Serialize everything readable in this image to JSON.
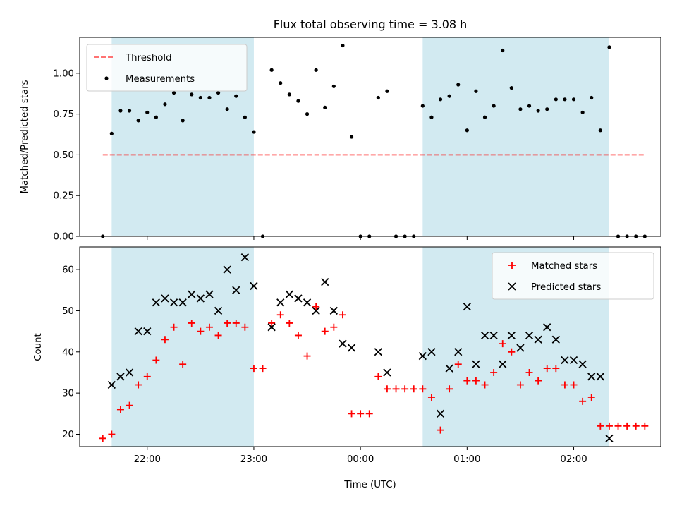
{
  "title": "Flux total observing time = 3.08 h",
  "colors": {
    "shade": "#add8e6",
    "threshold": "#ff0000",
    "measurement": "#000000",
    "matched": "#ff0000",
    "predicted": "#000000"
  },
  "chart_data": [
    {
      "type": "scatter",
      "ylabel": "Matched/Predicted stars",
      "xlabel": "",
      "ylim": [
        0,
        1.22
      ],
      "yticks": [
        0.0,
        0.25,
        0.5,
        0.75,
        1.0
      ],
      "ytick_labels": [
        "0.00",
        "0.25",
        "0.50",
        "0.75",
        "1.00"
      ],
      "shaded_intervals": [
        [
          "21:40",
          "23:00"
        ],
        [
          "00:35",
          "02:20"
        ]
      ],
      "legend": {
        "placement": "top-left",
        "entries": [
          "Threshold",
          "Measurements"
        ]
      },
      "threshold": {
        "name": "Threshold",
        "value": 0.5,
        "x_range": [
          "21:35",
          "02:40"
        ],
        "style": "dashed"
      },
      "series": [
        {
          "name": "Measurements",
          "marker": "dot",
          "points": [
            [
              "21:35",
              0.0
            ],
            [
              "21:40",
              0.63
            ],
            [
              "21:45",
              0.77
            ],
            [
              "21:50",
              0.77
            ],
            [
              "21:55",
              0.71
            ],
            [
              "22:00",
              0.76
            ],
            [
              "22:05",
              0.73
            ],
            [
              "22:10",
              0.81
            ],
            [
              "22:15",
              0.88
            ],
            [
              "22:20",
              0.71
            ],
            [
              "22:25",
              0.87
            ],
            [
              "22:30",
              0.85
            ],
            [
              "22:35",
              0.85
            ],
            [
              "22:40",
              0.88
            ],
            [
              "22:45",
              0.78
            ],
            [
              "22:50",
              0.86
            ],
            [
              "22:55",
              0.73
            ],
            [
              "23:00",
              0.64
            ],
            [
              "23:05",
              0.0
            ],
            [
              "23:10",
              1.02
            ],
            [
              "23:15",
              0.94
            ],
            [
              "23:20",
              0.87
            ],
            [
              "23:25",
              0.83
            ],
            [
              "23:30",
              0.75
            ],
            [
              "23:35",
              1.02
            ],
            [
              "23:40",
              0.79
            ],
            [
              "23:45",
              0.92
            ],
            [
              "23:50",
              1.17
            ],
            [
              "23:55",
              0.61
            ],
            [
              "00:00",
              0.0
            ],
            [
              "00:05",
              0.0
            ],
            [
              "00:10",
              0.85
            ],
            [
              "00:15",
              0.89
            ],
            [
              "00:20",
              0.0
            ],
            [
              "00:25",
              0.0
            ],
            [
              "00:30",
              0.0
            ],
            [
              "00:35",
              0.8
            ],
            [
              "00:40",
              0.73
            ],
            [
              "00:45",
              0.84
            ],
            [
              "00:50",
              0.86
            ],
            [
              "00:55",
              0.93
            ],
            [
              "01:00",
              0.65
            ],
            [
              "01:05",
              0.89
            ],
            [
              "01:10",
              0.73
            ],
            [
              "01:15",
              0.8
            ],
            [
              "01:20",
              1.14
            ],
            [
              "01:25",
              0.91
            ],
            [
              "01:30",
              0.78
            ],
            [
              "01:35",
              0.8
            ],
            [
              "01:40",
              0.77
            ],
            [
              "01:45",
              0.78
            ],
            [
              "01:50",
              0.84
            ],
            [
              "01:55",
              0.84
            ],
            [
              "02:00",
              0.84
            ],
            [
              "02:05",
              0.76
            ],
            [
              "02:10",
              0.85
            ],
            [
              "02:15",
              0.65
            ],
            [
              "02:20",
              1.16
            ],
            [
              "02:25",
              0.0
            ],
            [
              "02:30",
              0.0
            ],
            [
              "02:35",
              0.0
            ],
            [
              "02:40",
              0.0
            ]
          ]
        }
      ]
    },
    {
      "type": "scatter",
      "ylabel": "Count",
      "xlabel": "Time (UTC)",
      "ylim": [
        17,
        65.5
      ],
      "yticks": [
        20,
        30,
        40,
        50,
        60
      ],
      "ytick_labels": [
        "20",
        "30",
        "40",
        "50",
        "60"
      ],
      "xticks": [
        "22:00",
        "23:00",
        "00:00",
        "01:00",
        "02:00"
      ],
      "xtick_labels": [
        "22:00",
        "23:00",
        "00:00",
        "01:00",
        "02:00"
      ],
      "shaded_intervals": [
        [
          "21:40",
          "23:00"
        ],
        [
          "00:35",
          "02:20"
        ]
      ],
      "legend": {
        "placement": "top-right",
        "entries": [
          "Matched stars",
          "Predicted stars"
        ]
      },
      "series": [
        {
          "name": "Matched stars",
          "marker": "plus",
          "points": [
            [
              "21:35",
              19
            ],
            [
              "21:40",
              20
            ],
            [
              "21:45",
              26
            ],
            [
              "21:50",
              27
            ],
            [
              "21:55",
              32
            ],
            [
              "22:00",
              34
            ],
            [
              "22:05",
              38
            ],
            [
              "22:10",
              43
            ],
            [
              "22:15",
              46
            ],
            [
              "22:20",
              37
            ],
            [
              "22:25",
              47
            ],
            [
              "22:30",
              45
            ],
            [
              "22:35",
              46
            ],
            [
              "22:40",
              44
            ],
            [
              "22:45",
              47
            ],
            [
              "22:50",
              47
            ],
            [
              "22:55",
              46
            ],
            [
              "23:00",
              36
            ],
            [
              "23:05",
              36
            ],
            [
              "23:10",
              47
            ],
            [
              "23:15",
              49
            ],
            [
              "23:20",
              47
            ],
            [
              "23:25",
              44
            ],
            [
              "23:30",
              39
            ],
            [
              "23:35",
              51
            ],
            [
              "23:40",
              45
            ],
            [
              "23:45",
              46
            ],
            [
              "23:50",
              49
            ],
            [
              "23:55",
              25
            ],
            [
              "00:00",
              25
            ],
            [
              "00:05",
              25
            ],
            [
              "00:10",
              34
            ],
            [
              "00:15",
              31
            ],
            [
              "00:20",
              31
            ],
            [
              "00:25",
              31
            ],
            [
              "00:30",
              31
            ],
            [
              "00:35",
              31
            ],
            [
              "00:40",
              29
            ],
            [
              "00:45",
              21
            ],
            [
              "00:50",
              31
            ],
            [
              "00:55",
              37
            ],
            [
              "01:00",
              33
            ],
            [
              "01:05",
              33
            ],
            [
              "01:10",
              32
            ],
            [
              "01:15",
              35
            ],
            [
              "01:20",
              42
            ],
            [
              "01:25",
              40
            ],
            [
              "01:30",
              32
            ],
            [
              "01:35",
              35
            ],
            [
              "01:40",
              33
            ],
            [
              "01:45",
              36
            ],
            [
              "01:50",
              36
            ],
            [
              "01:55",
              32
            ],
            [
              "02:00",
              32
            ],
            [
              "02:05",
              28
            ],
            [
              "02:10",
              29
            ],
            [
              "02:15",
              22
            ],
            [
              "02:20",
              22
            ],
            [
              "02:25",
              22
            ],
            [
              "02:30",
              22
            ],
            [
              "02:35",
              22
            ],
            [
              "02:40",
              22
            ]
          ]
        },
        {
          "name": "Predicted stars",
          "marker": "x",
          "points": [
            [
              "21:40",
              32
            ],
            [
              "21:45",
              34
            ],
            [
              "21:50",
              35
            ],
            [
              "21:55",
              45
            ],
            [
              "22:00",
              45
            ],
            [
              "22:05",
              52
            ],
            [
              "22:10",
              53
            ],
            [
              "22:15",
              52
            ],
            [
              "22:20",
              52
            ],
            [
              "22:25",
              54
            ],
            [
              "22:30",
              53
            ],
            [
              "22:35",
              54
            ],
            [
              "22:40",
              50
            ],
            [
              "22:45",
              60
            ],
            [
              "22:50",
              55
            ],
            [
              "22:55",
              63
            ],
            [
              "23:00",
              56
            ],
            [
              "23:10",
              46
            ],
            [
              "23:15",
              52
            ],
            [
              "23:20",
              54
            ],
            [
              "23:25",
              53
            ],
            [
              "23:30",
              52
            ],
            [
              "23:35",
              50
            ],
            [
              "23:40",
              57
            ],
            [
              "23:45",
              50
            ],
            [
              "23:50",
              42
            ],
            [
              "23:55",
              41
            ],
            [
              "00:10",
              40
            ],
            [
              "00:15",
              35
            ],
            [
              "00:35",
              39
            ],
            [
              "00:40",
              40
            ],
            [
              "00:45",
              25
            ],
            [
              "00:50",
              36
            ],
            [
              "00:55",
              40
            ],
            [
              "01:00",
              51
            ],
            [
              "01:05",
              37
            ],
            [
              "01:10",
              44
            ],
            [
              "01:15",
              44
            ],
            [
              "01:20",
              37
            ],
            [
              "01:25",
              44
            ],
            [
              "01:30",
              41
            ],
            [
              "01:35",
              44
            ],
            [
              "01:40",
              43
            ],
            [
              "01:45",
              46
            ],
            [
              "01:50",
              43
            ],
            [
              "01:55",
              38
            ],
            [
              "02:00",
              38
            ],
            [
              "02:05",
              37
            ],
            [
              "02:10",
              34
            ],
            [
              "02:15",
              34
            ],
            [
              "02:20",
              19
            ]
          ]
        }
      ]
    }
  ]
}
